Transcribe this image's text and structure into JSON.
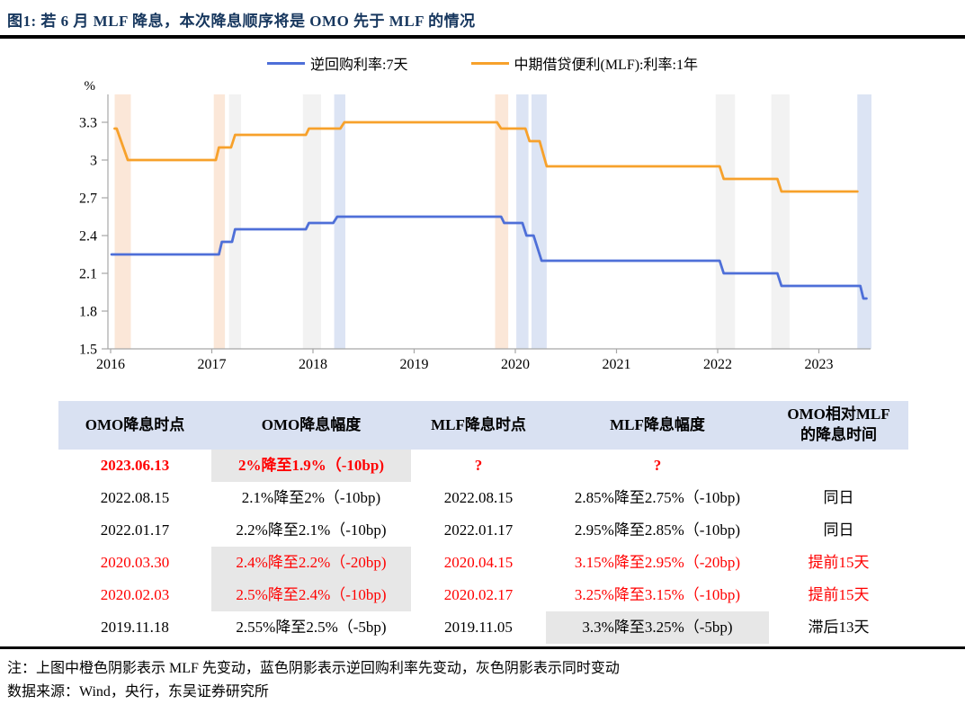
{
  "figure": {
    "title": "图1:  若 6 月 MLF 降息，本次降息顺序将是 OMO 先于 MLF 的情况",
    "note": "注：上图中橙色阴影表示 MLF 先变动，蓝色阴影表示逆回购利率先变动，灰色阴影表示同时变动",
    "source": "数据来源：Wind，央行，东吴证券研究所",
    "title_color": "#17375E"
  },
  "legend": {
    "items": [
      {
        "label": "逆回购利率:7天",
        "color": "#4E6FD8"
      },
      {
        "label": "中期借贷便利(MLF):利率:1年",
        "color": "#F7A12B"
      }
    ]
  },
  "chart_data": {
    "type": "line",
    "title": "",
    "xlabel": "",
    "ylabel": "%",
    "ylim": [
      1.5,
      3.45
    ],
    "xlim": [
      2016,
      2023.55
    ],
    "grid": false,
    "legend_position": "top",
    "ytick_values": [
      1.5,
      1.8,
      2.1,
      2.4,
      2.7,
      3.0,
      3.3
    ],
    "ytick_labels": [
      "1.5",
      "1.8",
      "2.1",
      "2.4",
      "2.7",
      "3",
      "3.3"
    ],
    "xticks": [
      2016,
      2017,
      2018,
      2019,
      2020,
      2021,
      2022,
      2023
    ],
    "series": [
      {
        "name": "逆回购利率:7天",
        "color": "#4E6FD8",
        "points": [
          [
            2016.01,
            2.25
          ],
          [
            2017.07,
            2.25
          ],
          [
            2017.1,
            2.35
          ],
          [
            2017.2,
            2.35
          ],
          [
            2017.23,
            2.45
          ],
          [
            2017.93,
            2.45
          ],
          [
            2017.96,
            2.5
          ],
          [
            2018.2,
            2.5
          ],
          [
            2018.24,
            2.55
          ],
          [
            2019.86,
            2.55
          ],
          [
            2019.89,
            2.5
          ],
          [
            2020.07,
            2.5
          ],
          [
            2020.11,
            2.4
          ],
          [
            2020.18,
            2.4
          ],
          [
            2020.26,
            2.2
          ],
          [
            2022.02,
            2.2
          ],
          [
            2022.06,
            2.1
          ],
          [
            2022.59,
            2.1
          ],
          [
            2022.63,
            2.0
          ],
          [
            2023.41,
            2.0
          ],
          [
            2023.44,
            1.9
          ],
          [
            2023.47,
            1.9
          ]
        ]
      },
      {
        "name": "中期借贷便利(MLF):利率:1年",
        "color": "#F7A12B",
        "points": [
          [
            2016.04,
            3.25
          ],
          [
            2016.06,
            3.25
          ],
          [
            2016.17,
            3.0
          ],
          [
            2017.04,
            3.0
          ],
          [
            2017.07,
            3.1
          ],
          [
            2017.19,
            3.1
          ],
          [
            2017.23,
            3.2
          ],
          [
            2017.93,
            3.2
          ],
          [
            2017.96,
            3.25
          ],
          [
            2018.27,
            3.25
          ],
          [
            2018.31,
            3.3
          ],
          [
            2019.82,
            3.3
          ],
          [
            2019.86,
            3.25
          ],
          [
            2020.1,
            3.25
          ],
          [
            2020.14,
            3.15
          ],
          [
            2020.24,
            3.15
          ],
          [
            2020.31,
            2.95
          ],
          [
            2022.02,
            2.95
          ],
          [
            2022.06,
            2.85
          ],
          [
            2022.59,
            2.85
          ],
          [
            2022.63,
            2.75
          ],
          [
            2023.38,
            2.75
          ]
        ]
      }
    ],
    "shaded_bands": [
      {
        "type": "mlf_first",
        "x0": 2016.04,
        "x1": 2016.2
      },
      {
        "type": "mlf_first",
        "x0": 2017.02,
        "x1": 2017.13
      },
      {
        "type": "simultaneous",
        "x0": 2017.17,
        "x1": 2017.29
      },
      {
        "type": "simultaneous",
        "x0": 2017.9,
        "x1": 2018.08
      },
      {
        "type": "omo_first",
        "x0": 2018.21,
        "x1": 2018.32
      },
      {
        "type": "mlf_first",
        "x0": 2019.8,
        "x1": 2019.93
      },
      {
        "type": "omo_first",
        "x0": 2020.01,
        "x1": 2020.13
      },
      {
        "type": "omo_first",
        "x0": 2020.16,
        "x1": 2020.31
      },
      {
        "type": "simultaneous",
        "x0": 2021.98,
        "x1": 2022.17
      },
      {
        "type": "simultaneous",
        "x0": 2022.53,
        "x1": 2022.71
      },
      {
        "type": "omo_first",
        "x0": 2023.38,
        "x1": 2023.52
      }
    ],
    "band_colors": {
      "mlf_first": "#FBE7D8",
      "omo_first": "#DCE4F4",
      "simultaneous": "#F2F2F2"
    },
    "band_meaning": {
      "mlf_first": "橙色阴影表示 MLF 先变动",
      "omo_first": "蓝色阴影表示逆回购利率先变动",
      "simultaneous": "灰色阴影表示同时变动"
    },
    "axis_color": "#A6A6A6"
  },
  "table": {
    "headers": [
      "OMO降息时点",
      "OMO降息幅度",
      "MLF降息时点",
      "MLF降息幅度",
      "OMO相对MLF\n的降息时间"
    ],
    "rows": [
      {
        "cells": [
          "2023.06.13",
          "2%降至1.9%（-10bp)",
          "?",
          "?",
          ""
        ],
        "color": "red",
        "bold": true,
        "gray_cols": [
          1
        ]
      },
      {
        "cells": [
          "2022.08.15",
          "2.1%降至2%（-10bp)",
          "2022.08.15",
          "2.85%降至2.75%（-10bp)",
          "同日"
        ],
        "color": "black",
        "bold": false,
        "gray_cols": []
      },
      {
        "cells": [
          "2022.01.17",
          "2.2%降至2.1%（-10bp)",
          "2022.01.17",
          "2.95%降至2.85%（-10bp)",
          "同日"
        ],
        "color": "black",
        "bold": false,
        "gray_cols": []
      },
      {
        "cells": [
          "2020.03.30",
          "2.4%降至2.2%（-20bp)",
          "2020.04.15",
          "3.15%降至2.95%（-20bp)",
          "提前15天"
        ],
        "color": "red",
        "bold": false,
        "gray_cols": [
          1
        ]
      },
      {
        "cells": [
          "2020.02.03",
          "2.5%降至2.4%（-10bp)",
          "2020.02.17",
          "3.25%降至3.15%（-10bp)",
          "提前15天"
        ],
        "color": "red",
        "bold": false,
        "gray_cols": [
          1
        ]
      },
      {
        "cells": [
          "2019.11.18",
          "2.55%降至2.5%（-5bp)",
          "2019.11.05",
          "3.3%降至3.25%（-5bp)",
          "滞后13天"
        ],
        "color": "black",
        "bold": false,
        "gray_cols": [
          3
        ]
      }
    ]
  }
}
